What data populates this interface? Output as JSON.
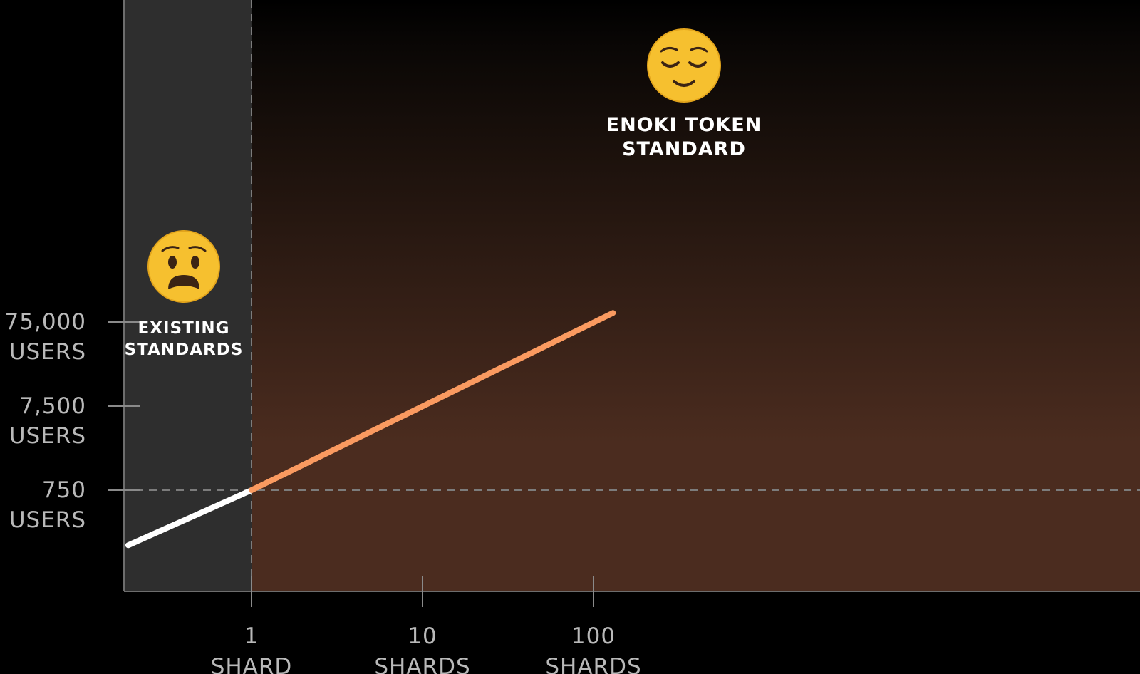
{
  "chart_data": {
    "type": "line",
    "x_scale": "log",
    "y_scale": "log",
    "x_ticks": [
      {
        "value": 1,
        "number": "1",
        "unit": "SHARD"
      },
      {
        "value": 10,
        "number": "10",
        "unit": "SHARDS"
      },
      {
        "value": 100,
        "number": "100",
        "unit": "SHARDS"
      }
    ],
    "y_ticks": [
      {
        "value": 750,
        "number": "750",
        "unit": "USERS"
      },
      {
        "value": 7500,
        "number": "7,500",
        "unit": "USERS"
      },
      {
        "value": 75000,
        "number": "75,000",
        "unit": "USERS"
      }
    ],
    "series": [
      {
        "color": "#ffffff",
        "points": [
          [
            0.19,
            166
          ],
          [
            1,
            750
          ]
        ]
      },
      {
        "color": "#fa9a60",
        "points": [
          [
            1,
            750
          ],
          [
            130,
            96000
          ]
        ]
      }
    ],
    "reference_lines": [
      {
        "axis": "x",
        "value": 1,
        "style": "dashed"
      },
      {
        "axis": "y",
        "value": 750,
        "style": "dashed"
      }
    ],
    "regions": [
      {
        "label_lines": [
          "EXISTING",
          "STANDARDS"
        ],
        "icon": "anguished-face-emoji",
        "fill": "#2e2e2e"
      },
      {
        "label_lines": [
          "ENOKI TOKEN",
          "STANDARD"
        ],
        "icon": "relieved-face-emoji",
        "gradient": [
          "#000000",
          "#4b2c1f"
        ]
      }
    ],
    "grid": false
  }
}
